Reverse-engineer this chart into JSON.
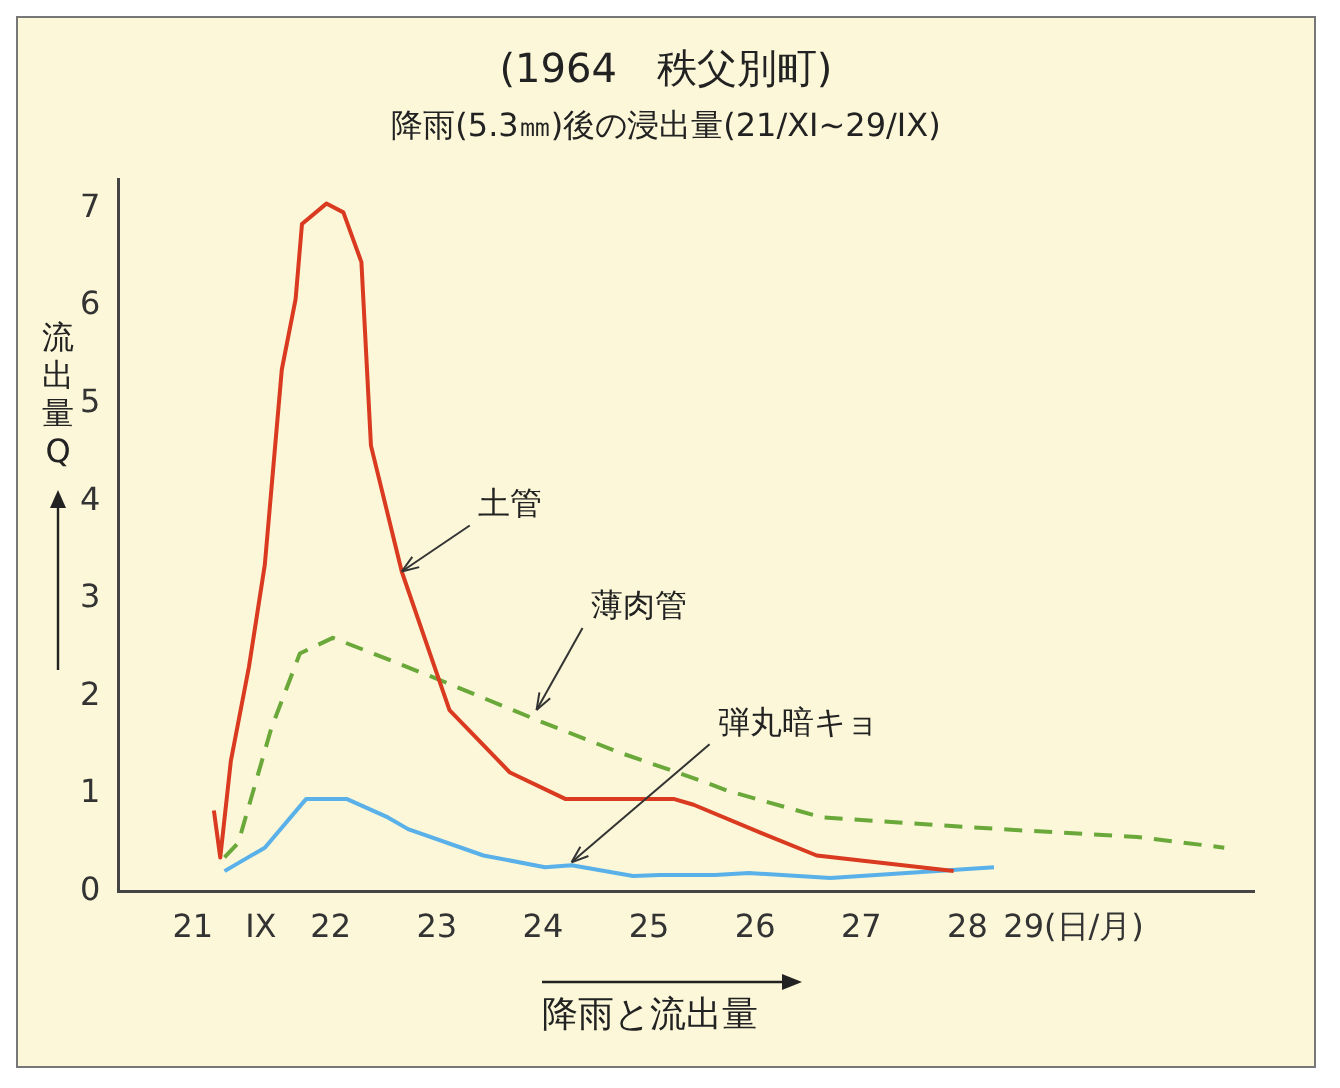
{
  "chart_data": {
    "type": "line",
    "title": "(1964　秩父別町)",
    "subtitle": "降雨(5.3㎜)後の浸出量(21/XI~29/IX)",
    "xlabel": "降雨と流出量",
    "ylabel": "流出量Q",
    "xlim": [
      20,
      30.7
    ],
    "xticks": [
      {
        "value": 21,
        "label": "21　IX"
      },
      22,
      23,
      24,
      25,
      26,
      27,
      28,
      {
        "value": 29,
        "label": "29(日/月)"
      }
    ],
    "ylim": [
      0,
      7.3
    ],
    "yticks": [
      0,
      1,
      2,
      3,
      4,
      5,
      6,
      7
    ],
    "grid": false,
    "legend": false,
    "marker": "none",
    "series": [
      {
        "color": "#d93a20",
        "line_style": "solid",
        "x": [
          20.9,
          20.96,
          21.06,
          21.23,
          21.38,
          21.54,
          21.67,
          21.73,
          21.96,
          22.12,
          22.29,
          22.38,
          22.67,
          22.98,
          23.12,
          23.69,
          24.21,
          24.98,
          25.23,
          25.42,
          26.06,
          26.58,
          27.87
        ],
        "values": [
          0.83,
          0.35,
          1.34,
          2.3,
          3.35,
          5.35,
          6.07,
          6.84,
          7.05,
          6.96,
          6.45,
          4.57,
          3.28,
          2.3,
          1.86,
          1.22,
          0.95,
          0.95,
          0.95,
          0.89,
          0.6,
          0.37,
          0.21
        ]
      },
      {
        "color": "#6aa83a",
        "line_style": "dashed",
        "x": [
          21,
          21.13,
          21.44,
          21.71,
          22.02,
          22.4,
          22.98,
          23.94,
          24.71,
          25.48,
          25.75,
          26.63,
          28.31,
          29.6,
          30.42
        ],
        "values": [
          0.35,
          0.5,
          1.67,
          2.44,
          2.6,
          2.44,
          2.19,
          1.76,
          1.43,
          1.14,
          1.03,
          0.76,
          0.64,
          0.56,
          0.45
        ]
      },
      {
        "color": "#5ab0e8",
        "line_style": "solid",
        "x": [
          21,
          21.38,
          21.77,
          22.15,
          22.54,
          22.73,
          23.44,
          24.02,
          24.27,
          24.85,
          25.1,
          25.62,
          25.94,
          26.71,
          28.25
        ],
        "values": [
          0.21,
          0.45,
          0.95,
          0.95,
          0.76,
          0.64,
          0.37,
          0.25,
          0.27,
          0.16,
          0.17,
          0.17,
          0.19,
          0.14,
          0.25
        ]
      }
    ],
    "annotations": [
      {
        "text": "土管",
        "x": 22.67,
        "y": 3.28
      },
      {
        "text": "薄肉管",
        "x": 23.94,
        "y": 1.86
      },
      {
        "text": "弾丸暗キョ",
        "x": 24.27,
        "y": 0.3
      }
    ]
  }
}
